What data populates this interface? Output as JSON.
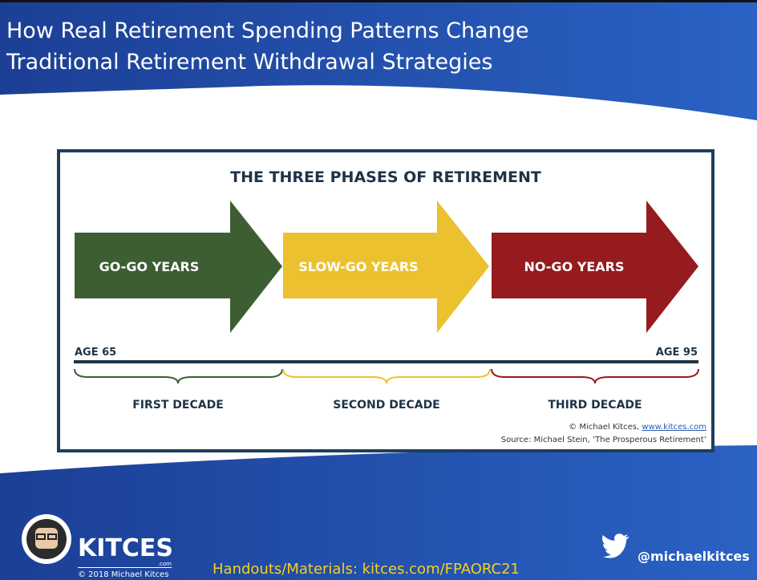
{
  "header": {
    "title_lines": [
      "How Real Retirement Spending Patterns Change",
      "Traditional Retirement Withdrawal Strategies"
    ]
  },
  "infographic": {
    "title": "THE THREE PHASES OF RETIREMENT",
    "phases": [
      "GO-GO YEARS",
      "SLOW-GO YEARS",
      "NO-GO YEARS"
    ],
    "age_start": "AGE 65",
    "age_end": "AGE 95",
    "decades": [
      "FIRST DECADE",
      "SECOND DECADE",
      "THIRD DECADE"
    ],
    "credit_prefix": "© Michael Kitces,",
    "credit_link": "www.kitces.com",
    "source": "Source: Michael Stein, ‘The Prosperous Retirement’"
  },
  "footer": {
    "logo_name": "KITCES",
    "logo_suffix": ".com",
    "copyright": "© 2018 Michael Kitces",
    "handouts": "Handouts/Materials: kitces.com/FPAORC21",
    "twitter": "@michaelkitces"
  }
}
